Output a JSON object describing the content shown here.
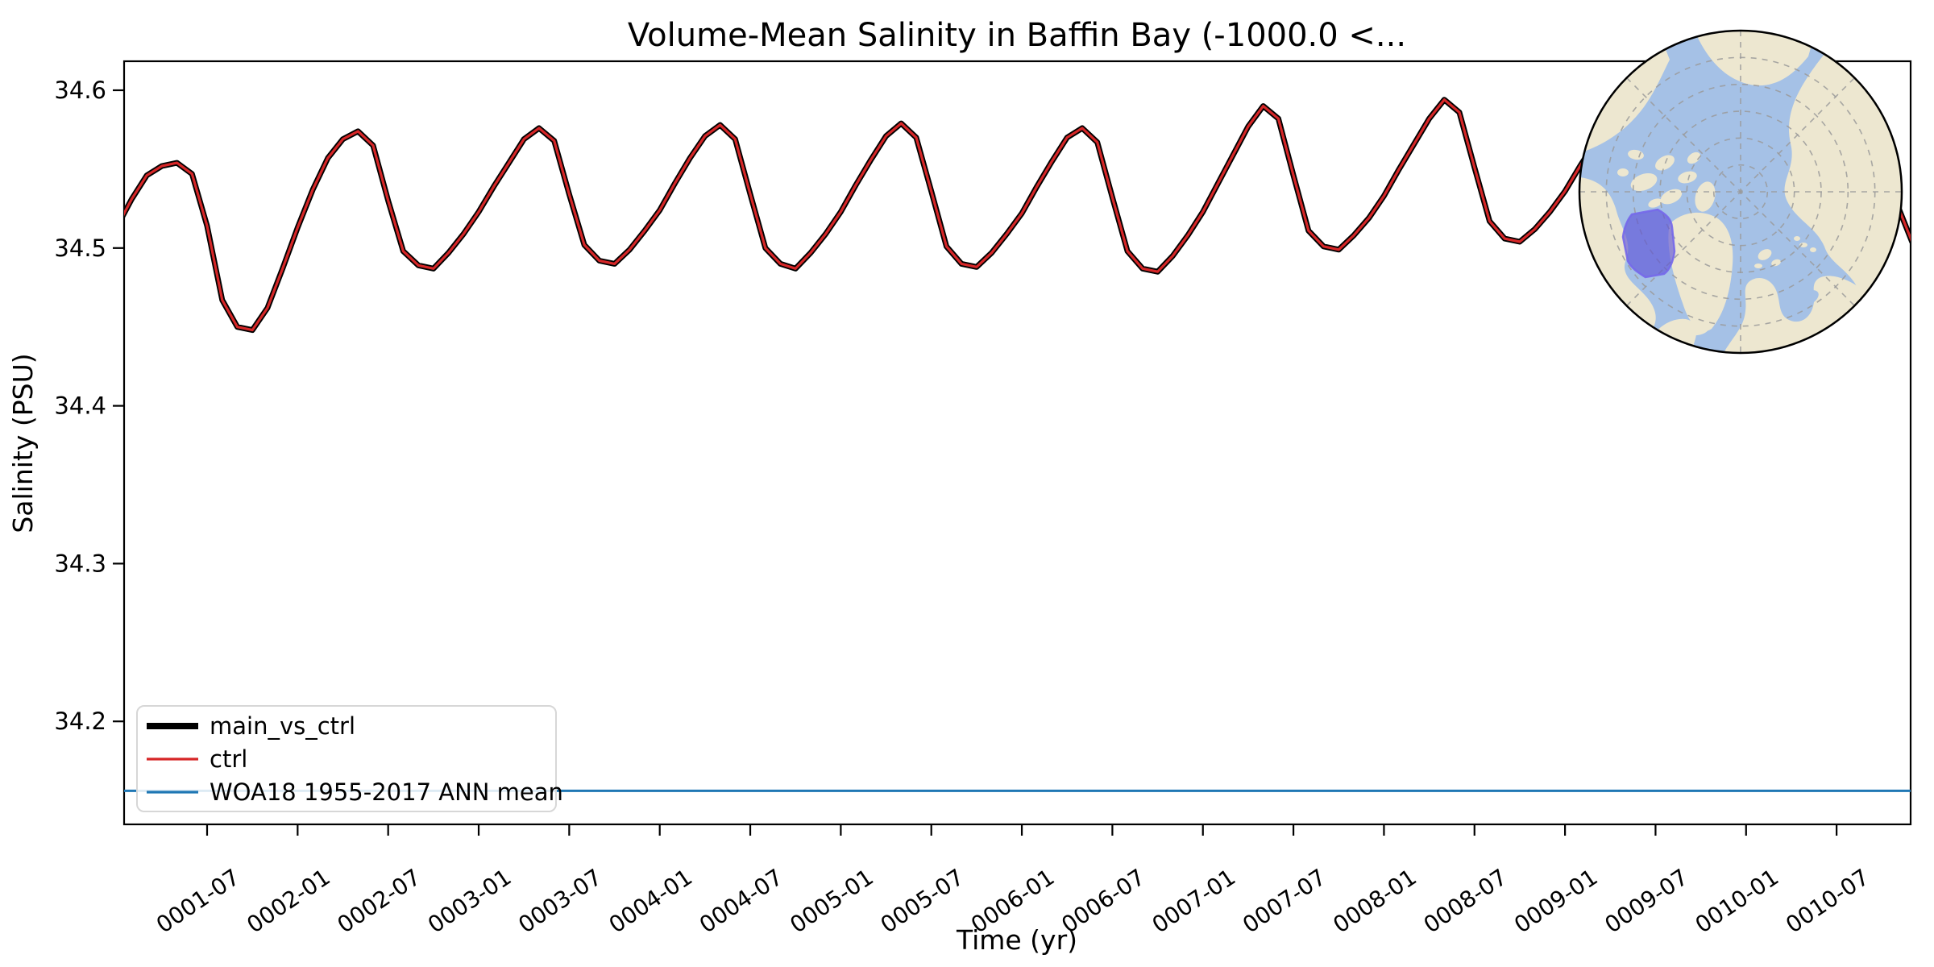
{
  "chart_data": {
    "type": "line",
    "title": "Volume-Mean Salinity in Baffin Bay (-1000.0 <...",
    "xlabel": "Time (yr)",
    "ylabel": "Salinity (PSU)",
    "ylim": [
      34.135,
      34.617
    ],
    "y_ticks": [
      34.6,
      34.5,
      34.4,
      34.3,
      34.2
    ],
    "x_tick_labels": [
      "0001-07",
      "0002-01",
      "0002-07",
      "0003-01",
      "0003-07",
      "0004-01",
      "0004-07",
      "0005-01",
      "0005-07",
      "0006-01",
      "0006-07",
      "0007-01",
      "0007-07",
      "0008-01",
      "0008-07",
      "0009-01",
      "0009-07",
      "0010-01",
      "0010-07"
    ],
    "x_range": [
      "0001-01",
      "0010-12"
    ],
    "series": [
      {
        "name": "main_vs_ctrl",
        "color": "#000000",
        "linewidth": 7.0
      },
      {
        "name": "ctrl",
        "color": "#d62728",
        "linewidth": 3.2
      }
    ],
    "monthly_values": [
      34.513,
      34.531,
      34.546,
      34.552,
      34.554,
      34.547,
      34.514,
      34.467,
      34.45,
      34.448,
      34.462,
      34.487,
      34.513,
      34.537,
      34.557,
      34.569,
      34.574,
      34.565,
      34.53,
      34.498,
      34.489,
      34.487,
      34.497,
      34.509,
      34.523,
      34.539,
      34.554,
      34.569,
      34.576,
      34.568,
      34.534,
      34.502,
      34.492,
      34.49,
      34.499,
      34.511,
      34.524,
      34.541,
      34.557,
      34.571,
      34.578,
      34.569,
      34.534,
      34.5,
      34.49,
      34.487,
      34.497,
      34.509,
      34.523,
      34.54,
      34.556,
      34.571,
      34.579,
      34.57,
      34.536,
      34.501,
      34.49,
      34.488,
      34.497,
      34.509,
      34.522,
      34.539,
      34.555,
      34.57,
      34.576,
      34.567,
      34.532,
      34.498,
      34.487,
      34.485,
      34.495,
      34.508,
      34.523,
      34.541,
      34.559,
      34.577,
      34.59,
      34.582,
      34.546,
      34.511,
      34.501,
      34.499,
      34.508,
      34.519,
      34.533,
      34.55,
      34.566,
      34.582,
      34.594,
      34.586,
      34.551,
      34.517,
      34.506,
      34.504,
      34.512,
      34.523,
      34.536,
      34.552,
      34.567,
      34.581,
      34.591,
      34.583,
      34.548,
      34.513,
      34.502,
      34.499,
      34.508,
      34.52,
      34.534,
      34.551,
      34.566,
      34.58,
      34.589,
      34.581,
      34.547,
      34.514,
      34.506,
      34.512,
      34.528,
      34.504
    ],
    "reference_line": {
      "label": "WOA18 1955-2017 ANN mean",
      "value": 34.156,
      "color": "#1f77b4",
      "linewidth": 3.0
    },
    "legend": {
      "position": "lower left",
      "items": [
        {
          "label": "main_vs_ctrl",
          "color": "#000000",
          "sample_width": 8.0
        },
        {
          "label": "ctrl",
          "color": "#d62728",
          "sample_width": 3.2
        },
        {
          "label": "WOA18 1955-2017 ANN mean",
          "color": "#1f77b4",
          "sample_width": 3.2
        }
      ]
    },
    "inset_map": {
      "type": "north-polar-map",
      "highlight_region": "Baffin Bay",
      "ocean_color": "#a5c1e6",
      "land_color": "#ede7d0",
      "region_color": "#5a4fd6"
    }
  }
}
